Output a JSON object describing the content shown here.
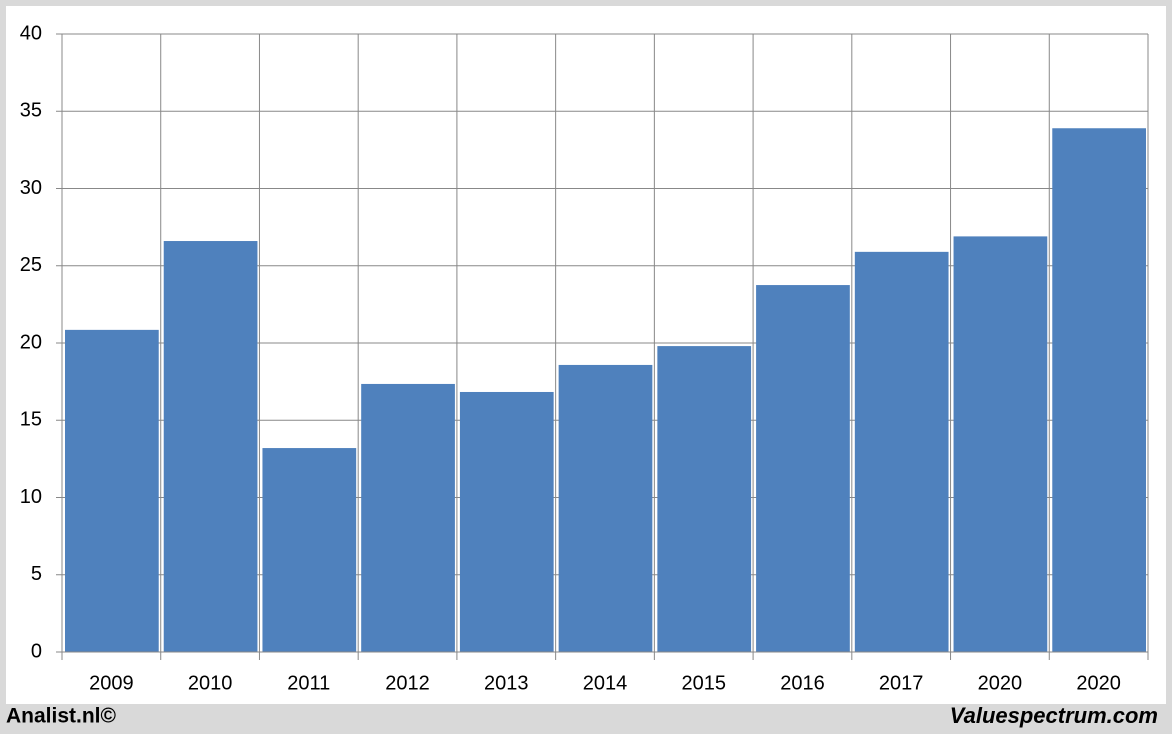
{
  "chart_data": {
    "type": "bar",
    "categories": [
      "2009",
      "2010",
      "2011",
      "2012",
      "2013",
      "2014",
      "2015",
      "2016",
      "2017",
      "2020",
      "2020"
    ],
    "values": [
      20.85,
      26.6,
      13.2,
      17.35,
      16.83,
      18.58,
      19.8,
      23.75,
      25.9,
      26.9,
      33.9
    ],
    "color": "#4f81bd",
    "ylim": [
      0,
      40
    ],
    "yticks": [
      0,
      5,
      10,
      15,
      20,
      25,
      30,
      35,
      40
    ],
    "grid": true,
    "credit_left": "Analist.nl©",
    "credit_right": "Valuespectrum.com"
  }
}
